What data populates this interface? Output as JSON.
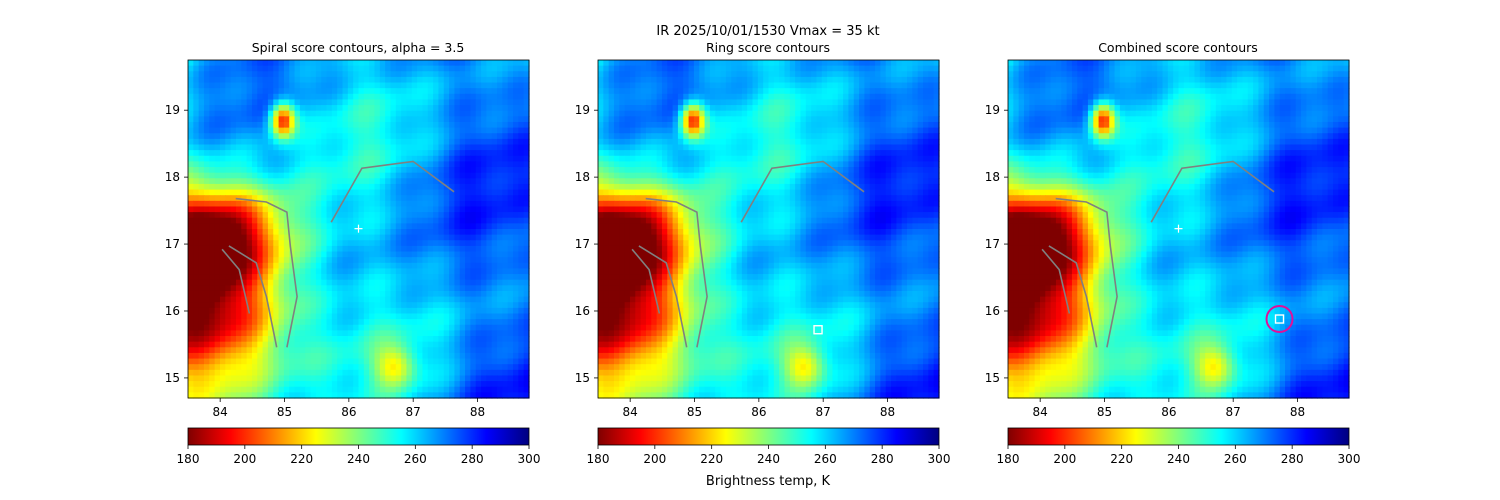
{
  "figure": {
    "suptitle_line1": "IR  2025/10/01/1530    Vmax = 35 kt"
  },
  "colorbar": {
    "label": "Brightness temp, K",
    "range": [
      180,
      300
    ],
    "ticks": [
      "180",
      "200",
      "220",
      "240",
      "260",
      "280",
      "300"
    ],
    "colormap": "jet_r",
    "colors": [
      "#7f0000",
      "#ff0000",
      "#ff7f00",
      "#ffff00",
      "#7fff7f",
      "#00ffff",
      "#007fff",
      "#0000ff",
      "#00007f"
    ]
  },
  "chart_data": [
    {
      "type": "heatmap",
      "title": "Spiral score contours, alpha =  3.5",
      "xlim": [
        83.5,
        88.8
      ],
      "ylim": [
        14.7,
        19.75
      ],
      "xticks": [
        "84",
        "85",
        "86",
        "87",
        "88"
      ],
      "yticks": [
        "15",
        "16",
        "17",
        "18",
        "19"
      ],
      "contour_color": "#808080",
      "markers": [
        {
          "kind": "plus",
          "x": 86.15,
          "y": 17.23,
          "color": "#ffffff"
        }
      ]
    },
    {
      "type": "heatmap",
      "title": "Ring score contours",
      "xlim": [
        83.5,
        88.8
      ],
      "ylim": [
        14.7,
        19.75
      ],
      "xticks": [
        "84",
        "85",
        "86",
        "87",
        "88"
      ],
      "yticks": [
        "15",
        "16",
        "17",
        "18",
        "19"
      ],
      "contour_color": "#808080",
      "markers": [
        {
          "kind": "square",
          "x": 86.92,
          "y": 15.72,
          "color": "#ffffff"
        }
      ]
    },
    {
      "type": "heatmap",
      "title": "Combined score contours",
      "xlim": [
        83.5,
        88.8
      ],
      "ylim": [
        14.7,
        19.75
      ],
      "xticks": [
        "84",
        "85",
        "86",
        "87",
        "88"
      ],
      "yticks": [
        "15",
        "16",
        "17",
        "18",
        "19"
      ],
      "contour_color": "#808080",
      "markers": [
        {
          "kind": "plus",
          "x": 86.15,
          "y": 17.23,
          "color": "#ffffff"
        },
        {
          "kind": "square",
          "x": 87.72,
          "y": 15.88,
          "color": "#ffffff"
        },
        {
          "kind": "circle",
          "x": 87.72,
          "y": 15.88,
          "color": "#e0109a"
        }
      ]
    }
  ]
}
